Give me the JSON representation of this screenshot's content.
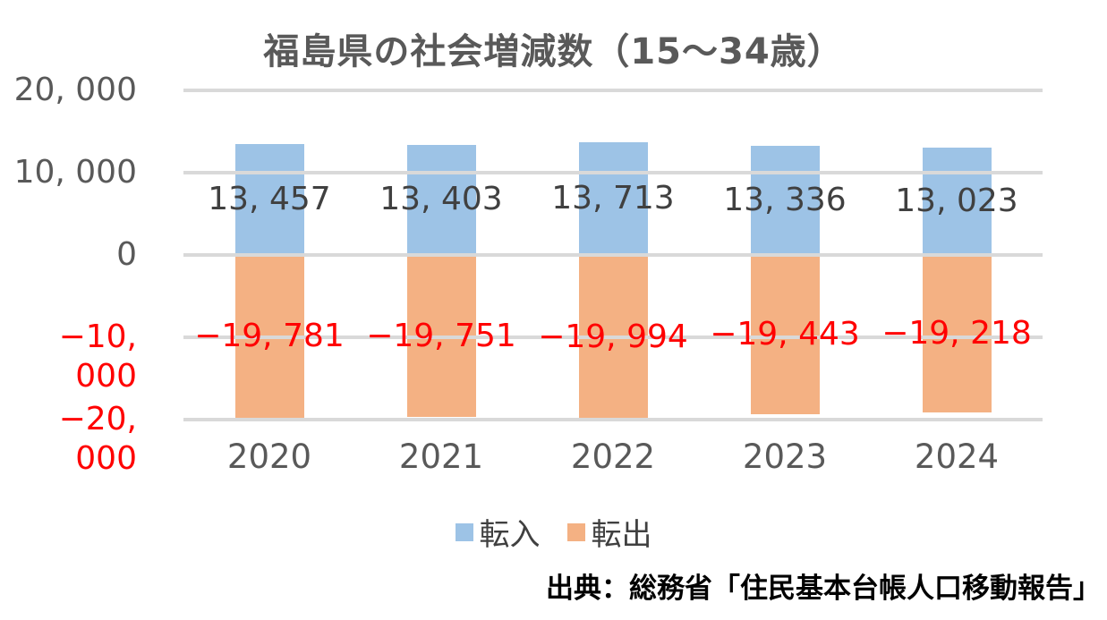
{
  "chart_data": {
    "type": "bar",
    "title": "福島県の社会増減数（15～34歳）",
    "categories": [
      "2020",
      "2021",
      "2022",
      "2023",
      "2024"
    ],
    "series": [
      {
        "name": "転入",
        "color": "#9DC3E6",
        "label_color": "#404040",
        "values": [
          13457,
          13403,
          13713,
          13336,
          13023
        ],
        "data_labels": [
          "13, 457",
          "13, 403",
          "13, 713",
          "13, 336",
          "13, 023"
        ]
      },
      {
        "name": "転出",
        "color": "#F4B183",
        "label_color": "#FF0000",
        "values": [
          -19781,
          -19751,
          -19994,
          -19443,
          -19218
        ],
        "data_labels": [
          "−19, 781",
          "−19, 751",
          "−19, 994",
          "−19, 443",
          "−19, 218"
        ]
      }
    ],
    "xlabel": "",
    "ylabel": "",
    "ylim": [
      -20000,
      20000
    ],
    "y_ticks": [
      {
        "value": 20000,
        "label": "20, 000",
        "color": "#595959"
      },
      {
        "value": 10000,
        "label": "10, 000",
        "color": "#595959"
      },
      {
        "value": 0,
        "label": "0",
        "color": "#595959"
      },
      {
        "value": -10000,
        "label": "−10, 000",
        "color": "#FF0000"
      },
      {
        "value": -20000,
        "label": "−20, 000",
        "color": "#FF0000"
      }
    ],
    "grid": true,
    "grid_color": "#D9D9D9",
    "axis_label_color": "#595959",
    "legend_position": "bottom"
  },
  "source_note": "出典：総務省「住民基本台帳人口移動報告」"
}
